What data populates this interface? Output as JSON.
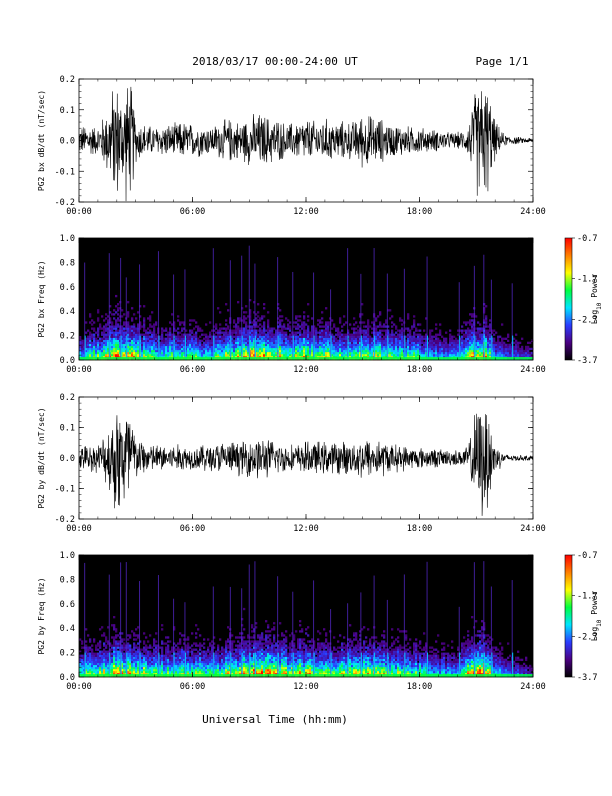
{
  "header": {
    "title": "2018/03/17  00:00-24:00 UT",
    "page": "Page 1/1"
  },
  "xlabel": "Universal Time (hh:mm)",
  "xticks": [
    "00:00",
    "06:00",
    "12:00",
    "18:00",
    "24:00"
  ],
  "colorbar": {
    "ticks": [
      "-0.7",
      "-1.7",
      "-2.7",
      "-3.7"
    ],
    "label_main": "Log",
    "label_sub": "10",
    "label_tail": " Power",
    "colors": [
      "#000000",
      "#4b0082",
      "#2a3cff",
      "#00e5ff",
      "#00ff40",
      "#ffff00",
      "#ff7f00",
      "#ff0000"
    ]
  },
  "chart_data": [
    {
      "type": "line",
      "ylabel": "PG2 bx dB/dt (nT/sec)",
      "xlim": [
        0,
        24
      ],
      "ylim": [
        -0.2,
        0.2
      ],
      "yticks": [
        "0.2",
        "0.1",
        "0.0",
        "-0.1",
        "-0.2"
      ],
      "envelope": {
        "x": [
          0,
          0.5,
          1,
          1.5,
          1.8,
          2,
          2.2,
          2.5,
          2.8,
          3,
          3.5,
          4,
          4.5,
          5,
          5.5,
          6,
          6.5,
          7,
          7.5,
          8,
          8.5,
          9,
          9.5,
          10,
          10.5,
          11,
          11.5,
          12,
          12.5,
          13,
          13.5,
          14,
          14.5,
          15,
          15.5,
          16,
          16.5,
          17,
          17.5,
          18,
          18.5,
          19,
          19.5,
          20,
          20.5,
          21,
          21.3,
          21.6,
          22,
          22.5,
          23,
          23.5,
          24
        ],
        "amplitude": [
          0.05,
          0.06,
          0.05,
          0.12,
          0.2,
          0.22,
          0.16,
          0.22,
          0.2,
          0.08,
          0.06,
          0.05,
          0.06,
          0.06,
          0.07,
          0.06,
          0.06,
          0.05,
          0.07,
          0.08,
          0.07,
          0.09,
          0.1,
          0.09,
          0.08,
          0.06,
          0.07,
          0.08,
          0.07,
          0.08,
          0.07,
          0.07,
          0.07,
          0.1,
          0.09,
          0.08,
          0.06,
          0.06,
          0.05,
          0.05,
          0.04,
          0.04,
          0.03,
          0.03,
          0.04,
          0.2,
          0.22,
          0.2,
          0.07,
          0.02,
          0.015,
          0.01,
          0.01
        ]
      }
    },
    {
      "type": "heatmap",
      "ylabel": "PG2 bx Freq (Hz)",
      "xlim": [
        0,
        24
      ],
      "ylim": [
        0,
        1
      ],
      "yticks": [
        "1.0",
        "0.8",
        "0.6",
        "0.4",
        "0.2",
        "0.0"
      ],
      "zlim": [
        -3.7,
        -0.7
      ],
      "activity": {
        "x": [
          0,
          1,
          1.5,
          2,
          2.5,
          3,
          4,
          5,
          6,
          7,
          8,
          9,
          10,
          11,
          12,
          13,
          14,
          15,
          16,
          17,
          18,
          19,
          20,
          21,
          21.5,
          22,
          23,
          24
        ],
        "level": [
          0.45,
          0.6,
          0.75,
          1,
          0.8,
          0.75,
          0.55,
          0.55,
          0.55,
          0.55,
          0.65,
          0.85,
          0.8,
          0.7,
          0.75,
          0.7,
          0.65,
          0.75,
          0.65,
          0.6,
          0.5,
          0.4,
          0.35,
          0.9,
          0.95,
          0.45,
          0.25,
          0.2
        ]
      }
    },
    {
      "type": "line",
      "ylabel": "PG2 by dB/dt (nT/sec)",
      "xlim": [
        0,
        24
      ],
      "ylim": [
        -0.2,
        0.2
      ],
      "yticks": [
        "0.2",
        "0.1",
        "0.0",
        "-0.1",
        "-0.2"
      ],
      "envelope": {
        "x": [
          0,
          0.5,
          1,
          1.5,
          1.8,
          2,
          2.2,
          2.5,
          2.8,
          3,
          3.5,
          4,
          4.5,
          5,
          5.5,
          6,
          6.5,
          7,
          7.5,
          8,
          8.5,
          9,
          9.5,
          10,
          10.5,
          11,
          11.5,
          12,
          12.5,
          13,
          13.5,
          14,
          14.5,
          15,
          15.5,
          16,
          16.5,
          17,
          17.5,
          18,
          18.5,
          19,
          19.5,
          20,
          20.5,
          21,
          21.3,
          21.6,
          22,
          22.5,
          23,
          23.5,
          24
        ],
        "amplitude": [
          0.04,
          0.05,
          0.05,
          0.1,
          0.18,
          0.22,
          0.2,
          0.22,
          0.18,
          0.08,
          0.06,
          0.05,
          0.05,
          0.05,
          0.05,
          0.04,
          0.05,
          0.05,
          0.06,
          0.06,
          0.06,
          0.07,
          0.08,
          0.07,
          0.06,
          0.05,
          0.05,
          0.06,
          0.06,
          0.06,
          0.06,
          0.06,
          0.06,
          0.08,
          0.07,
          0.07,
          0.05,
          0.05,
          0.04,
          0.04,
          0.035,
          0.035,
          0.03,
          0.03,
          0.04,
          0.18,
          0.22,
          0.2,
          0.06,
          0.015,
          0.012,
          0.01,
          0.01
        ]
      }
    },
    {
      "type": "heatmap",
      "ylabel": "PG2 by Freq (Hz)",
      "xlim": [
        0,
        24
      ],
      "ylim": [
        0,
        1
      ],
      "yticks": [
        "1.0",
        "0.8",
        "0.6",
        "0.4",
        "0.2",
        "0.0"
      ],
      "zlim": [
        -3.7,
        -0.7
      ],
      "activity": {
        "x": [
          0,
          1,
          1.5,
          2,
          2.5,
          3,
          4,
          5,
          6,
          7,
          8,
          9,
          10,
          11,
          12,
          13,
          14,
          15,
          16,
          17,
          18,
          19,
          20,
          21,
          21.5,
          22,
          23,
          24
        ],
        "level": [
          0.5,
          0.65,
          0.75,
          1,
          0.8,
          0.8,
          0.6,
          0.6,
          0.6,
          0.6,
          0.7,
          0.9,
          0.85,
          0.75,
          0.8,
          0.75,
          0.7,
          0.8,
          0.7,
          0.65,
          0.55,
          0.45,
          0.4,
          0.9,
          0.95,
          0.45,
          0.3,
          0.2
        ]
      }
    }
  ]
}
